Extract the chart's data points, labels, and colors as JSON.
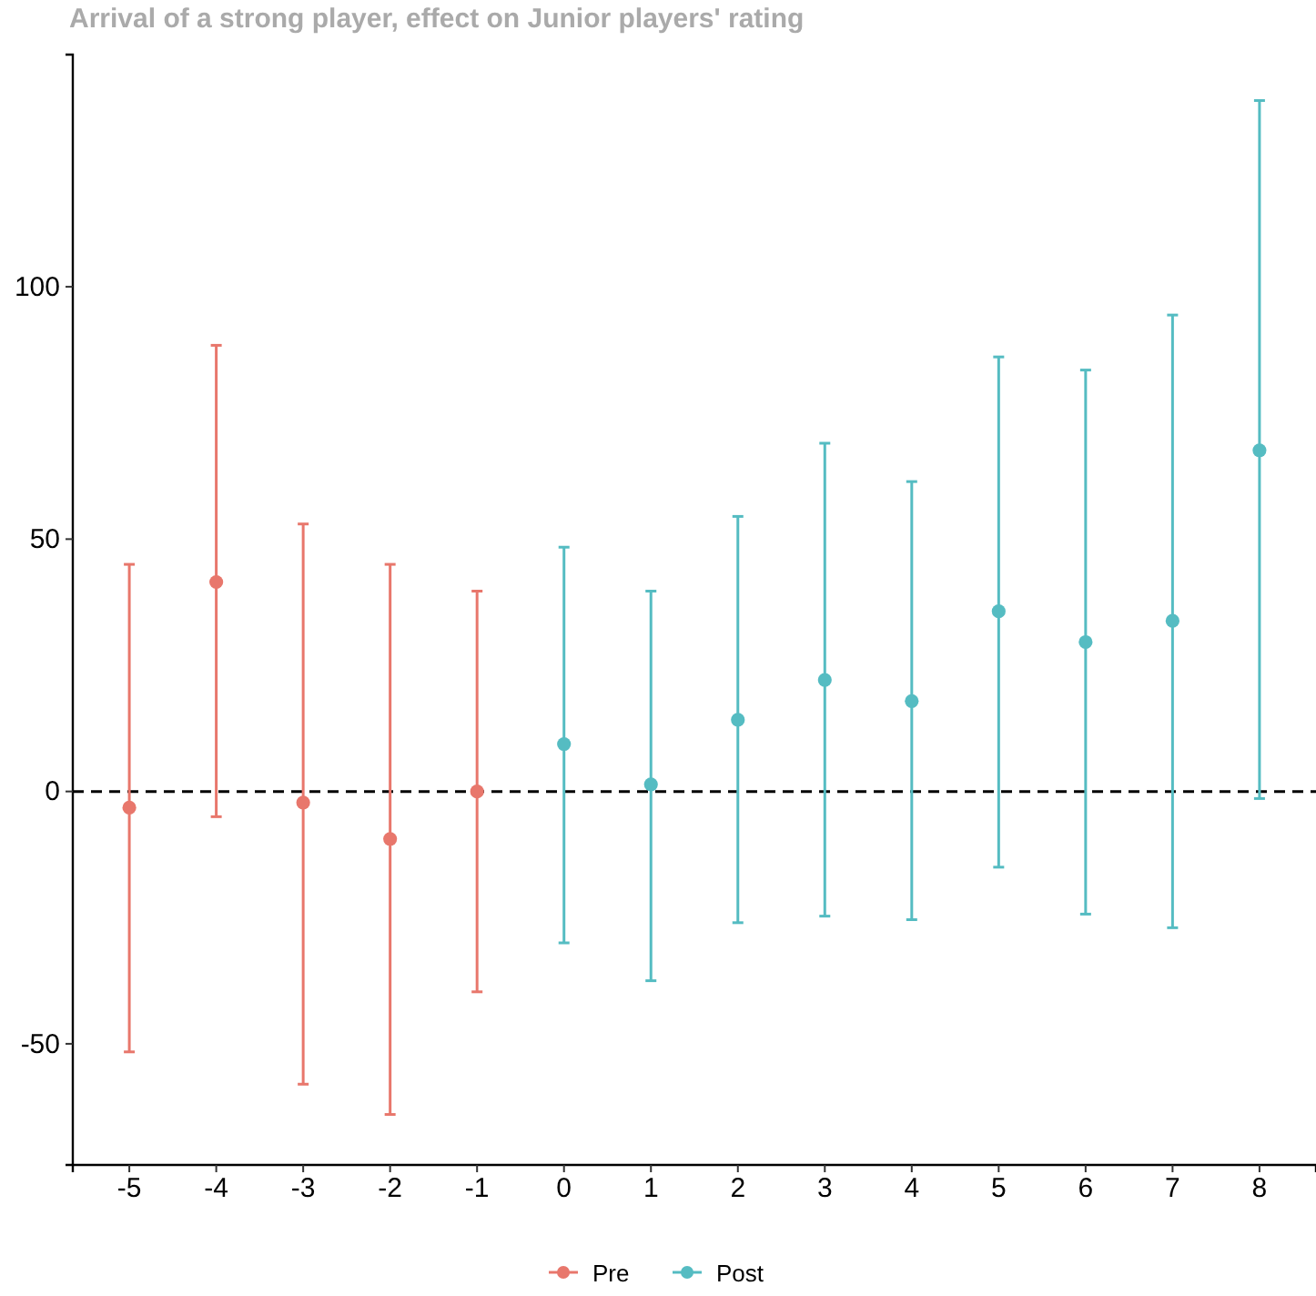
{
  "chart_data": {
    "type": "scatter",
    "title": "Arrival of a strong player, effect on Junior players' rating",
    "xlim": [
      -5.65,
      8.65
    ],
    "xticks": [
      -5,
      -4,
      -3,
      -2,
      -1,
      0,
      1,
      2,
      3,
      4,
      5,
      6,
      7,
      8
    ],
    "ylim": [
      -74,
      146
    ],
    "yticks": [
      -50,
      0,
      50,
      100
    ],
    "series": [
      {
        "name": "Pre",
        "color": "#e8776c",
        "x": [
          -5,
          -4,
          -3,
          -2,
          -1
        ],
        "values": [
          -3.2,
          41.5,
          -2.2,
          -9.4,
          0
        ],
        "errors": [
          [
            -51.6,
            45
          ],
          [
            -5,
            88.4
          ],
          [
            -58,
            53
          ],
          [
            -64,
            45
          ],
          [
            -39.7,
            39.7
          ]
        ]
      },
      {
        "name": "Post",
        "color": "#55bcc2",
        "x": [
          0,
          1,
          2,
          3,
          4,
          5,
          6,
          7,
          8
        ],
        "values": [
          9.4,
          1.4,
          14.2,
          22.1,
          17.9,
          35.7,
          29.6,
          33.8,
          67.6
        ],
        "errors": [
          [
            -30,
            48.4
          ],
          [
            -37.5,
            39.7
          ],
          [
            -26,
            54.5
          ],
          [
            -24.7,
            69
          ],
          [
            -25.4,
            61.4
          ],
          [
            -15,
            86.1
          ],
          [
            -24.3,
            83.5
          ],
          [
            -27,
            94.4
          ],
          [
            -1.4,
            136.9
          ]
        ]
      }
    ],
    "ref_lines": [
      {
        "axis": "y",
        "value": 0,
        "color": "#000000",
        "line_style": "dashed"
      }
    ],
    "marker": "circle",
    "grid": false,
    "legend": "bottom"
  }
}
